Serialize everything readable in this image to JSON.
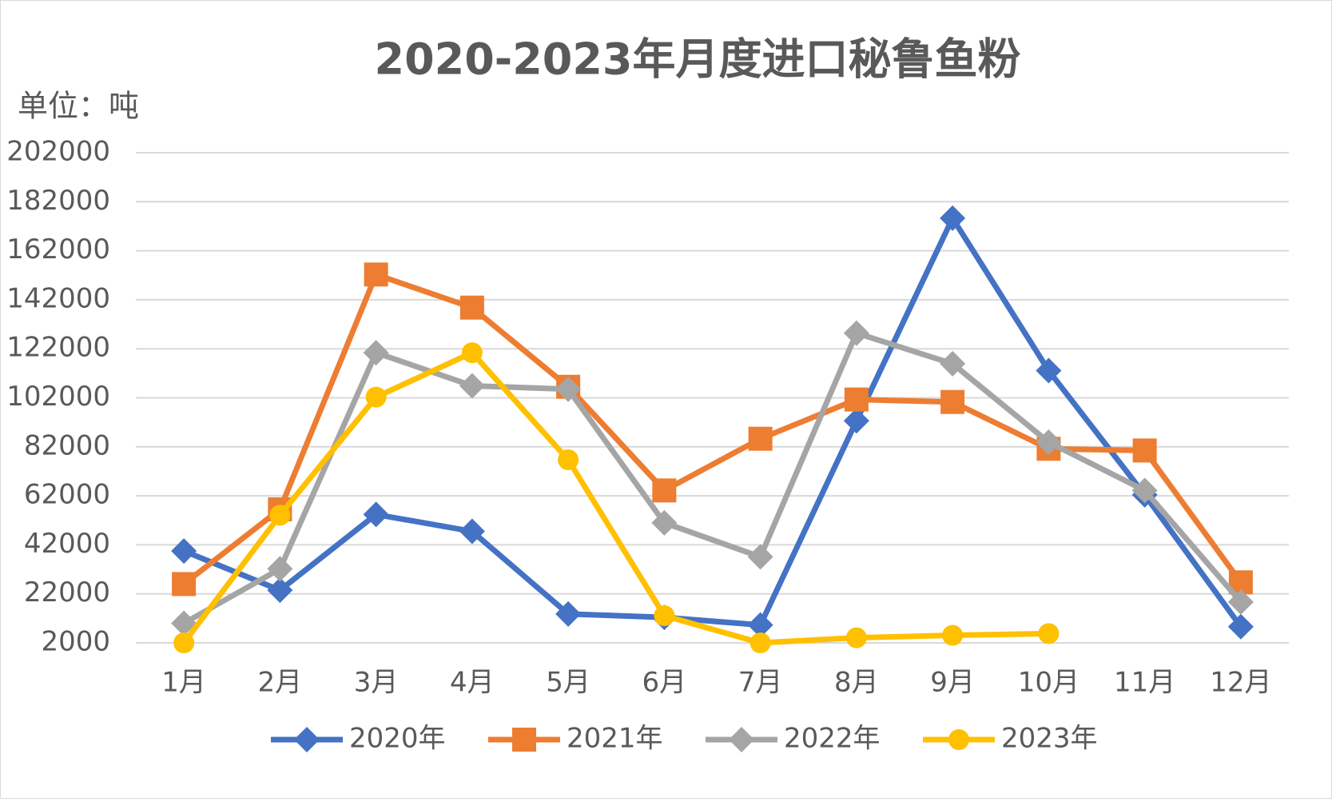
{
  "chart_data": {
    "type": "line",
    "title": "2020-2023年月度进口秘鲁鱼粉",
    "y_axis_label": "单位：吨",
    "categories": [
      "1月",
      "2月",
      "3月",
      "4月",
      "5月",
      "6月",
      "7月",
      "8月",
      "9月",
      "10月",
      "11月",
      "12月"
    ],
    "series": [
      {
        "name": "2020年",
        "color": "#4472c4",
        "marker": "diamond",
        "values": [
          39500,
          23500,
          54400,
          47500,
          13800,
          12400,
          9300,
          92600,
          175300,
          113100,
          62400,
          8600
        ]
      },
      {
        "name": "2021年",
        "color": "#ed7d31",
        "marker": "square",
        "values": [
          26000,
          56500,
          152300,
          138800,
          106500,
          64200,
          85300,
          101300,
          100300,
          81200,
          80500,
          26700
        ]
      },
      {
        "name": "2022年",
        "color": "#a5a5a5",
        "marker": "diamond",
        "values": [
          10000,
          32200,
          120400,
          106900,
          105500,
          51000,
          37100,
          128400,
          115900,
          83900,
          64200,
          18700
        ]
      },
      {
        "name": "2023年",
        "color": "#ffc000",
        "marker": "circle",
        "values": [
          2000,
          54100,
          102300,
          120400,
          76700,
          13100,
          2000,
          4100,
          5100,
          5800,
          null,
          null
        ]
      }
    ],
    "ylim": [
      2000,
      202000
    ],
    "yticks": [
      2000,
      22000,
      42000,
      62000,
      82000,
      102000,
      122000,
      142000,
      162000,
      182000,
      202000
    ],
    "grid": true,
    "legend": "bottom"
  }
}
